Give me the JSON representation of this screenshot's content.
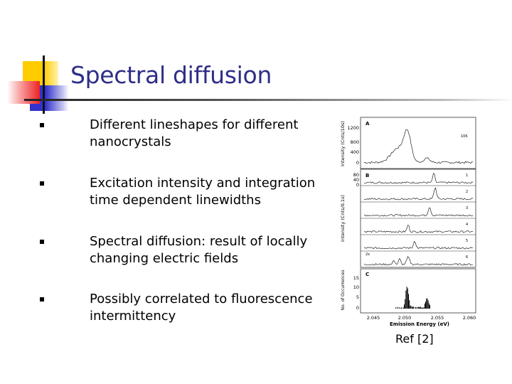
{
  "slide": {
    "title": "Spectral diffusion",
    "bullets": [
      "Different lineshapes for different nanocrystals",
      "Excitation intensity and integration time dependent linewidths",
      "Spectral diffusion: result of locally changing electric fields",
      "Possibly correlated to fluorescence intermittency"
    ],
    "reference": "Ref [2]"
  },
  "figure": {
    "panel_a": {
      "label": "A",
      "temp": "10K",
      "ylabel": "Intensity (Cnts/10s)",
      "yticks": [
        "1200",
        "800",
        "400",
        "0"
      ]
    },
    "panel_b": {
      "label": "B",
      "ylabel": "Intensity (Cnts/0.1s)",
      "yticks": [
        "80",
        "40",
        "0"
      ],
      "trace_labels": [
        "1",
        "2",
        "3",
        "4",
        "5",
        "6"
      ],
      "scale_note": "2x"
    },
    "panel_c": {
      "label": "C",
      "ylabel": "No. of Occurrences",
      "yticks": [
        "15",
        "10",
        "5",
        "0"
      ]
    },
    "xlabel": "Emission Energy (eV)",
    "xticks": [
      "2.045",
      "2.050",
      "2.055",
      "2.060"
    ]
  },
  "colors": {
    "title": "#2e2e87",
    "deco_yellow": "#ffcc00",
    "deco_blue": "#3333cc",
    "deco_red": "#ee2222"
  }
}
